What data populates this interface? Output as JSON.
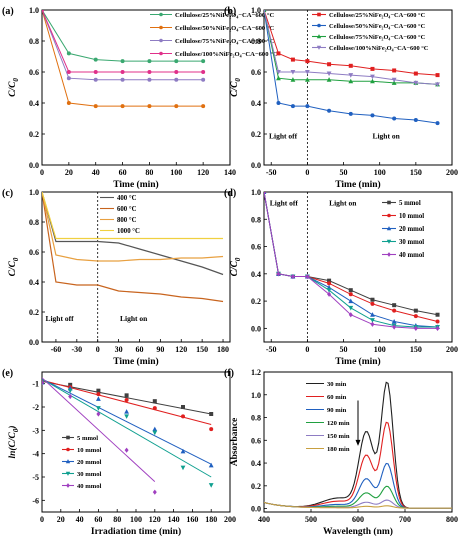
{
  "chart_data": [
    {
      "id": "a",
      "panel_label": "(a)",
      "type": "line",
      "xlabel": "Time (min)",
      "ylabel_main": "C/C",
      "ylabel_sub": "0",
      "xlim": [
        0,
        140
      ],
      "ylim": [
        0.0,
        1.0
      ],
      "xticks": [
        0,
        20,
        40,
        60,
        80,
        100,
        120,
        140
      ],
      "yticks": [
        0.0,
        0.2,
        0.4,
        0.6,
        0.8,
        1.0
      ],
      "legend_position": "top-right",
      "series": [
        {
          "name": "Cellulose/25%NiFe₂O₄−CA−600 °C",
          "color": "#3aa870",
          "marker": "circle",
          "x": [
            0,
            20,
            40,
            60,
            80,
            100,
            120
          ],
          "y": [
            1.0,
            0.72,
            0.68,
            0.67,
            0.67,
            0.67,
            0.67
          ]
        },
        {
          "name": "Cellulose/50%NiFe₂O₄−CA−600 °C",
          "color": "#e07010",
          "marker": "circle",
          "x": [
            0,
            20,
            40,
            60,
            80,
            100,
            120
          ],
          "y": [
            1.0,
            0.4,
            0.38,
            0.38,
            0.38,
            0.38,
            0.38
          ]
        },
        {
          "name": "Cellulose/75%NiFe₂O₄−CA−600 °C",
          "color": "#8e7cc3",
          "marker": "circle",
          "x": [
            0,
            20,
            40,
            60,
            80,
            100,
            120
          ],
          "y": [
            1.0,
            0.56,
            0.55,
            0.55,
            0.55,
            0.55,
            0.55
          ]
        },
        {
          "name": "Cellulose/100%NiFe₂O₄−CA−600 °C",
          "color": "#e0308a",
          "marker": "circle",
          "x": [
            0,
            20,
            40,
            60,
            80,
            100,
            120
          ],
          "y": [
            1.0,
            0.6,
            0.6,
            0.6,
            0.6,
            0.6,
            0.6
          ]
        }
      ]
    },
    {
      "id": "b",
      "panel_label": "(b)",
      "type": "line",
      "xlabel": "Time (min)",
      "ylabel_main": "C/C",
      "ylabel_sub": "0",
      "xlim": [
        -60,
        200
      ],
      "ylim": [
        0.0,
        1.0
      ],
      "xticks": [
        -50,
        0,
        50,
        100,
        150,
        200
      ],
      "yticks": [
        0.0,
        0.2,
        0.4,
        0.6,
        0.8,
        1.0
      ],
      "divider_x": 0,
      "annotations": [
        {
          "text": "Light off",
          "x": -53,
          "y": 0.17
        },
        {
          "text": "Light on",
          "x": 90,
          "y": 0.17
        }
      ],
      "legend_position": "top-right",
      "series": [
        {
          "name": "Cellulose/25%NiFe₂O₄−CA−600 °C",
          "color": "#e02020",
          "marker": "square",
          "x": [
            -60,
            -40,
            -20,
            0,
            30,
            60,
            90,
            120,
            150,
            180
          ],
          "y": [
            1.0,
            0.72,
            0.68,
            0.67,
            0.65,
            0.64,
            0.62,
            0.61,
            0.59,
            0.58
          ]
        },
        {
          "name": "Cellulose/50%NiFe₂O₄−CA−600 °C",
          "color": "#2060c0",
          "marker": "circle",
          "x": [
            -60,
            -40,
            -20,
            0,
            30,
            60,
            90,
            120,
            150,
            180
          ],
          "y": [
            1.0,
            0.4,
            0.38,
            0.38,
            0.35,
            0.33,
            0.32,
            0.3,
            0.29,
            0.27
          ]
        },
        {
          "name": "Cellulose/75%NiFe₂O₄−CA−600 °C",
          "color": "#20a040",
          "marker": "triangle",
          "x": [
            -60,
            -40,
            -20,
            0,
            30,
            60,
            90,
            120,
            150,
            180
          ],
          "y": [
            1.0,
            0.56,
            0.55,
            0.55,
            0.55,
            0.54,
            0.54,
            0.53,
            0.53,
            0.52
          ]
        },
        {
          "name": "Cellulose/100%NiFe₂O₄−CA−600 °C",
          "color": "#8e7cc3",
          "marker": "triangle-down",
          "x": [
            -60,
            -40,
            -20,
            0,
            30,
            60,
            90,
            120,
            150,
            180
          ],
          "y": [
            1.0,
            0.6,
            0.6,
            0.6,
            0.59,
            0.58,
            0.57,
            0.55,
            0.53,
            0.52
          ]
        }
      ]
    },
    {
      "id": "c",
      "panel_label": "(c)",
      "type": "line",
      "xlabel": "Time (min)",
      "ylabel_main": "C/C",
      "ylabel_sub": "0",
      "xlim": [
        -80,
        190
      ],
      "ylim": [
        0.0,
        1.0
      ],
      "xticks": [
        -60,
        -30,
        0,
        30,
        60,
        90,
        120,
        150,
        180
      ],
      "yticks": [
        0.0,
        0.2,
        0.4,
        0.6,
        0.8,
        1.0
      ],
      "divider_x": 0,
      "annotations": [
        {
          "text": "Light off",
          "x": -75,
          "y": 0.14
        },
        {
          "text": "Light on",
          "x": 32,
          "y": 0.14
        }
      ],
      "legend_position": "top-center",
      "series": [
        {
          "name": "400 °C",
          "color": "#555555",
          "marker": "none",
          "x": [
            -80,
            -60,
            -30,
            0,
            30,
            60,
            90,
            120,
            150,
            180
          ],
          "y": [
            1.0,
            0.67,
            0.67,
            0.67,
            0.66,
            0.62,
            0.58,
            0.54,
            0.5,
            0.45
          ]
        },
        {
          "name": "600 °C",
          "color": "#c8641e",
          "marker": "none",
          "x": [
            -80,
            -60,
            -30,
            0,
            30,
            60,
            90,
            120,
            150,
            180
          ],
          "y": [
            1.0,
            0.4,
            0.38,
            0.38,
            0.34,
            0.33,
            0.32,
            0.3,
            0.29,
            0.27
          ]
        },
        {
          "name": "800 °C",
          "color": "#e8a040",
          "marker": "none",
          "x": [
            -80,
            -60,
            -30,
            0,
            30,
            60,
            90,
            120,
            150,
            180
          ],
          "y": [
            1.0,
            0.58,
            0.55,
            0.54,
            0.54,
            0.55,
            0.55,
            0.56,
            0.56,
            0.57
          ]
        },
        {
          "name": "1000 °C",
          "color": "#f0d040",
          "marker": "none",
          "x": [
            -80,
            -60,
            -30,
            0,
            30,
            60,
            90,
            120,
            150,
            180
          ],
          "y": [
            1.0,
            0.69,
            0.69,
            0.69,
            0.69,
            0.69,
            0.69,
            0.69,
            0.69,
            0.69
          ]
        }
      ]
    },
    {
      "id": "d",
      "panel_label": "(d)",
      "type": "line",
      "xlabel": "Time (min)",
      "ylabel_main": "C/C",
      "ylabel_sub": "0",
      "xlim": [
        -60,
        200
      ],
      "ylim": [
        -0.1,
        1.0
      ],
      "xticks": [
        -50,
        0,
        50,
        100,
        150,
        200
      ],
      "yticks": [
        0.0,
        0.2,
        0.4,
        0.6,
        0.8,
        1.0
      ],
      "divider_x": 0,
      "annotations": [
        {
          "text": "Light off",
          "x": -52,
          "y": 0.9
        },
        {
          "text": "Light on",
          "x": 30,
          "y": 0.9
        }
      ],
      "legend_position": "top-right",
      "series": [
        {
          "name": "5 mmol",
          "color": "#404040",
          "marker": "square",
          "x": [
            -60,
            -40,
            -20,
            0,
            30,
            60,
            90,
            120,
            150,
            180
          ],
          "y": [
            1.0,
            0.4,
            0.38,
            0.38,
            0.35,
            0.28,
            0.21,
            0.17,
            0.13,
            0.1
          ]
        },
        {
          "name": "10 mmol",
          "color": "#e02020",
          "marker": "circle",
          "x": [
            -60,
            -40,
            -20,
            0,
            30,
            60,
            90,
            120,
            150,
            180
          ],
          "y": [
            1.0,
            0.4,
            0.38,
            0.38,
            0.33,
            0.25,
            0.18,
            0.13,
            0.09,
            0.05
          ]
        },
        {
          "name": "20 mmol",
          "color": "#2060c0",
          "marker": "triangle",
          "x": [
            -60,
            -40,
            -20,
            0,
            30,
            60,
            90,
            120,
            150,
            180
          ],
          "y": [
            1.0,
            0.4,
            0.38,
            0.38,
            0.3,
            0.2,
            0.1,
            0.05,
            0.02,
            0.01
          ]
        },
        {
          "name": "30 mmol",
          "color": "#10a090",
          "marker": "triangle-down",
          "x": [
            -60,
            -40,
            -20,
            0,
            30,
            60,
            90,
            120,
            150,
            180
          ],
          "y": [
            1.0,
            0.4,
            0.38,
            0.38,
            0.28,
            0.15,
            0.06,
            0.02,
            0.01,
            0.01
          ]
        },
        {
          "name": "40 mmol",
          "color": "#a040c0",
          "marker": "diamond",
          "x": [
            -60,
            -40,
            -20,
            0,
            30,
            60,
            90,
            120,
            150,
            180
          ],
          "y": [
            1.0,
            0.4,
            0.38,
            0.38,
            0.25,
            0.1,
            0.03,
            0.01,
            0.0,
            0.0
          ]
        }
      ]
    },
    {
      "id": "e",
      "panel_label": "(e)",
      "type": "scatter",
      "xlabel": "Irradiation time (min)",
      "ylabel_main": "ln(C/C",
      "ylabel_sub": "0",
      "ylabel_end": ")",
      "xlim": [
        0,
        200
      ],
      "ylim": [
        -6.5,
        -0.5
      ],
      "xticks": [
        0,
        20,
        40,
        60,
        80,
        100,
        120,
        140,
        160,
        180,
        200
      ],
      "yticks": [
        -1,
        -2,
        -3,
        -4,
        -5,
        -6
      ],
      "legend_position": "left",
      "series": [
        {
          "name": "5 mmol",
          "color": "#404040",
          "marker": "square",
          "x": [
            0,
            30,
            60,
            90,
            120,
            150,
            180
          ],
          "y": [
            -0.95,
            -1.05,
            -1.3,
            -1.5,
            -1.75,
            -2.0,
            -2.3
          ],
          "fit": [
            [
              0,
              -0.9
            ],
            [
              180,
              -2.3
            ]
          ]
        },
        {
          "name": "10 mmol",
          "color": "#e02020",
          "marker": "circle",
          "x": [
            0,
            30,
            60,
            90,
            120,
            150,
            180
          ],
          "y": [
            -0.95,
            -1.15,
            -1.45,
            -1.7,
            -2.05,
            -2.4,
            -2.95
          ],
          "fit": [
            [
              0,
              -0.85
            ],
            [
              180,
              -2.75
            ]
          ]
        },
        {
          "name": "20 mmol",
          "color": "#2060c0",
          "marker": "triangle",
          "x": [
            0,
            30,
            60,
            90,
            120,
            150,
            180
          ],
          "y": [
            -0.95,
            -1.2,
            -1.65,
            -2.2,
            -2.95,
            -3.9,
            -4.5
          ],
          "fit": [
            [
              0,
              -0.8
            ],
            [
              180,
              -4.45
            ]
          ]
        },
        {
          "name": "30 mmol",
          "color": "#10a090",
          "marker": "triangle-down",
          "x": [
            0,
            30,
            60,
            90,
            120,
            150,
            180
          ],
          "y": [
            -0.95,
            -1.3,
            -2.05,
            -2.4,
            -3.1,
            -4.6,
            -5.35
          ],
          "fit": [
            [
              0,
              -0.8
            ],
            [
              180,
              -5.0
            ]
          ]
        },
        {
          "name": "40 mmol",
          "color": "#a040c0",
          "marker": "diamond",
          "x": [
            0,
            30,
            60,
            90,
            120
          ],
          "y": [
            -0.95,
            -1.55,
            -2.3,
            -3.85,
            -5.65
          ],
          "fit": [
            [
              0,
              -0.75
            ],
            [
              120,
              -5.2
            ]
          ]
        }
      ]
    },
    {
      "id": "f",
      "panel_label": "(f)",
      "type": "line",
      "xlabel": "Wavelength (nm)",
      "ylabel_main": "Absorbance",
      "xlim": [
        400,
        800
      ],
      "ylim": [
        -0.03,
        1.2
      ],
      "xticks": [
        400,
        500,
        600,
        700,
        800
      ],
      "yticks": [
        0.0,
        0.2,
        0.4,
        0.6,
        0.8,
        1.0,
        1.2
      ],
      "legend_position": "top-left",
      "arrow": {
        "x": 600,
        "y_from": 0.95,
        "y_to": 0.56
      },
      "series": [
        {
          "name": "30 min",
          "color": "#202020",
          "peak": 1.1,
          "shoulder": 0.65
        },
        {
          "name": "60 min",
          "color": "#e02020",
          "peak": 0.75,
          "shoulder": 0.45
        },
        {
          "name": "90 min",
          "color": "#2060c0",
          "peak": 0.39,
          "shoulder": 0.25
        },
        {
          "name": "120 min",
          "color": "#20a040",
          "peak": 0.19,
          "shoulder": 0.13
        },
        {
          "name": "150 min",
          "color": "#8e7cc3",
          "peak": 0.07,
          "shoulder": 0.05
        },
        {
          "name": "180 min",
          "color": "#c8a040",
          "peak": 0.02,
          "shoulder": 0.015
        }
      ]
    }
  ]
}
